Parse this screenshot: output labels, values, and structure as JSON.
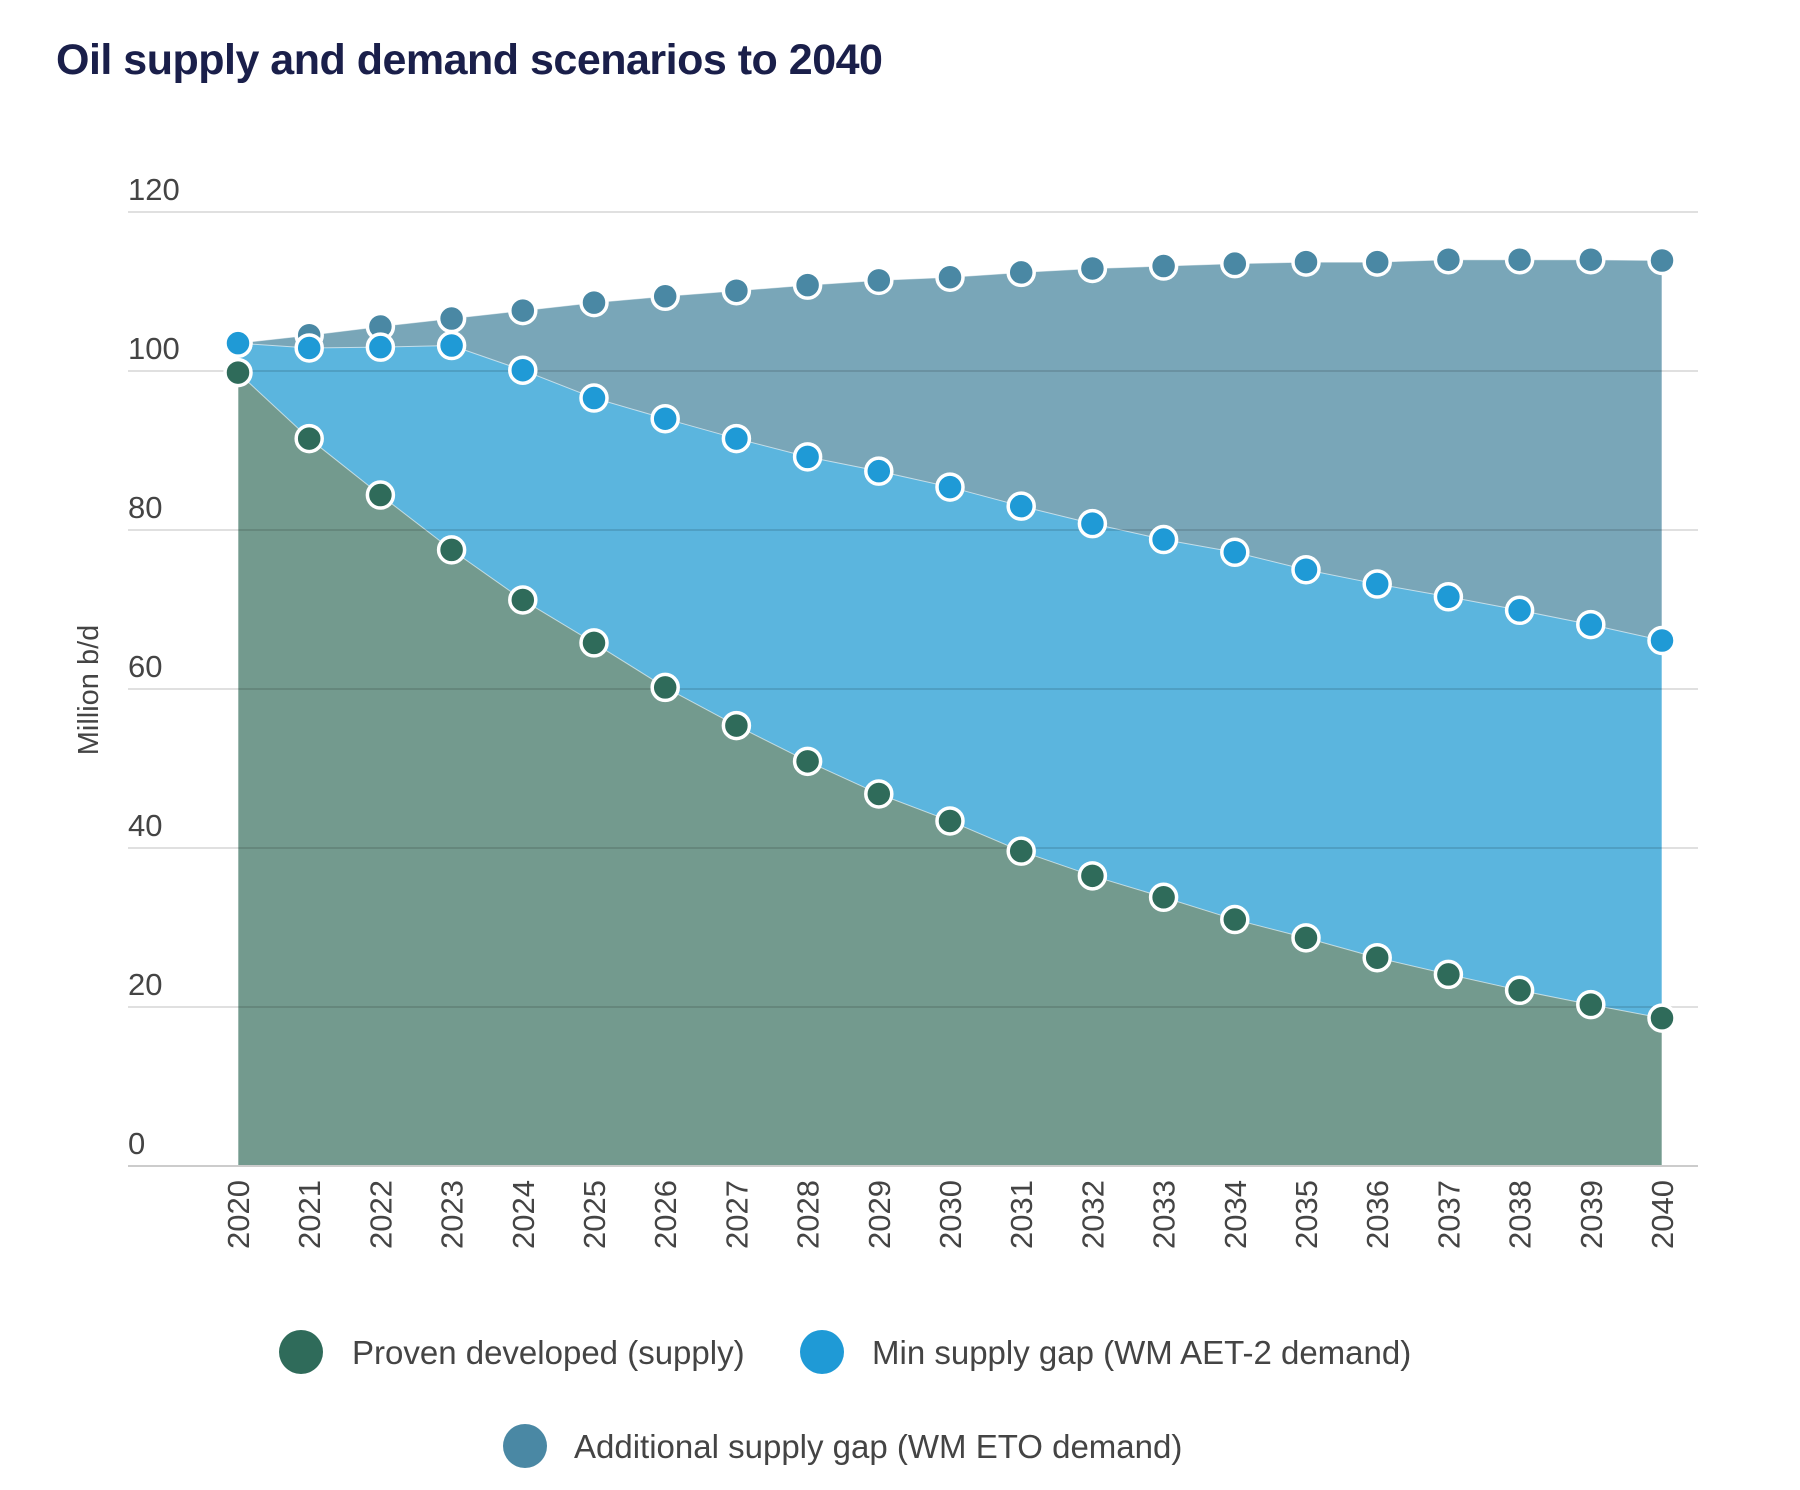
{
  "chart_data": {
    "type": "area",
    "stacked": false,
    "title": "Oil supply and demand scenarios to 2040",
    "ylabel": "Million b/d",
    "xlabel": "",
    "ylim": [
      0,
      120
    ],
    "yticks": [
      0,
      20,
      40,
      60,
      80,
      100,
      120
    ],
    "grid": true,
    "legend_placement": "bottom",
    "x": [
      2020,
      2021,
      2022,
      2023,
      2024,
      2025,
      2026,
      2027,
      2028,
      2029,
      2030,
      2031,
      2032,
      2033,
      2034,
      2035,
      2036,
      2037,
      2038,
      2039,
      2040
    ],
    "series": [
      {
        "name": "Additional supply gap (WM ETO demand)",
        "color": "#4a88a4",
        "fill": "#79a6b8",
        "values": [
          103.5,
          104.5,
          105.6,
          106.6,
          107.6,
          108.6,
          109.4,
          110.1,
          110.8,
          111.4,
          111.8,
          112.4,
          112.9,
          113.2,
          113.5,
          113.7,
          113.7,
          114.0,
          114.0,
          114.0,
          113.9
        ]
      },
      {
        "name": "Min supply gap (WM AET-2 demand)",
        "color": "#1f9ad6",
        "fill": "#5bb5de",
        "values": [
          103.5,
          102.9,
          103.0,
          103.2,
          100.1,
          96.6,
          94.0,
          91.5,
          89.2,
          87.4,
          85.4,
          83.0,
          80.8,
          78.8,
          77.2,
          75.0,
          73.2,
          71.6,
          69.9,
          68.1,
          66.1
        ]
      },
      {
        "name": "Proven developed (supply)",
        "color": "#2f6b5a",
        "fill": "#739a8e",
        "values": [
          99.8,
          91.5,
          84.4,
          77.5,
          71.2,
          65.8,
          60.2,
          55.4,
          50.9,
          46.8,
          43.4,
          39.6,
          36.5,
          33.8,
          31.0,
          28.7,
          26.2,
          24.1,
          22.1,
          20.3,
          18.6
        ]
      }
    ],
    "legend_order": [
      2,
      1,
      0
    ]
  }
}
